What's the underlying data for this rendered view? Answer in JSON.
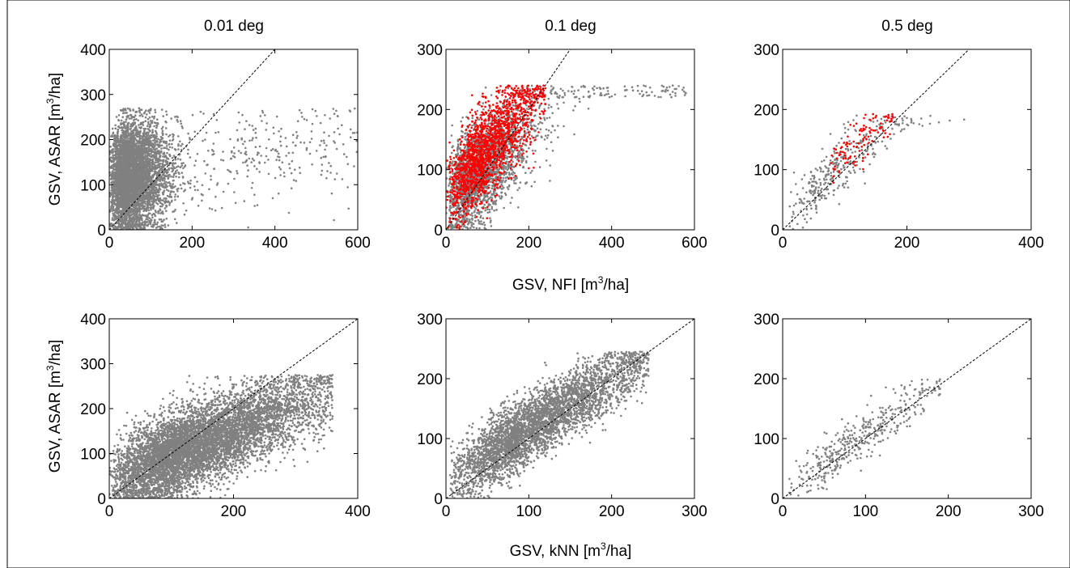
{
  "colors": {
    "grey_points": "#808080",
    "red_points": "#ff0000",
    "frame": "#000000"
  },
  "figure": {
    "titles": [
      "0.01 deg",
      "0.1 deg",
      "0.5 deg"
    ],
    "ylabel": {
      "pre": "GSV, ASAR [m",
      "sup": "3",
      "post": "/ha]"
    },
    "xlabel_top": {
      "pre": "GSV, NFI [m",
      "sup": "3",
      "post": "/ha]"
    },
    "xlabel_bottom": {
      "pre": "GSV, kNN [m",
      "sup": "3",
      "post": "/ha]"
    }
  },
  "chart_data": [
    {
      "type": "scatter",
      "id": "nfi-0.01",
      "title": "0.01 deg",
      "xlabel": "",
      "ylabel": "GSV, ASAR [m3/ha]",
      "xlim": [
        0,
        600
      ],
      "ylim": [
        0,
        400
      ],
      "xticks": [
        0,
        200,
        400,
        600
      ],
      "yticks": [
        0,
        100,
        200,
        300,
        400
      ],
      "reference_line": "1:1",
      "series": [
        {
          "color": "#808080",
          "n": 5000,
          "x_range": [
            0,
            600
          ],
          "x_peak": 60,
          "y_at_x0": 110,
          "y_slope": 0.15,
          "y_spread": 60,
          "y_max": 270
        }
      ]
    },
    {
      "type": "scatter",
      "id": "nfi-0.1",
      "title": "0.1 deg",
      "xlabel": "GSV, NFI [m3/ha]",
      "ylabel": "",
      "xlim": [
        0,
        600
      ],
      "ylim": [
        0,
        300
      ],
      "xticks": [
        0,
        200,
        400,
        600
      ],
      "yticks": [
        0,
        100,
        200,
        300
      ],
      "reference_line": "1:1",
      "series": [
        {
          "color": "#808080",
          "n": 2500,
          "x_range": [
            0,
            580
          ],
          "x_peak": 90,
          "y_at_x0": 50,
          "y_slope": 0.6,
          "y_spread": 40,
          "y_max": 240
        },
        {
          "color": "#ff0000",
          "n": 1600,
          "x_range": [
            0,
            240
          ],
          "x_peak": 110,
          "y_at_x0": 60,
          "y_slope": 0.75,
          "y_spread": 38,
          "y_max": 240
        }
      ]
    },
    {
      "type": "scatter",
      "id": "nfi-0.5",
      "title": "0.5 deg",
      "xlabel": "",
      "ylabel": "",
      "xlim": [
        0,
        400
      ],
      "ylim": [
        0,
        300
      ],
      "xticks": [
        0,
        200,
        400
      ],
      "yticks": [
        0,
        100,
        200,
        300
      ],
      "reference_line": "1:1",
      "series": [
        {
          "color": "#808080",
          "n": 340,
          "x_range": [
            10,
            310
          ],
          "x_peak": 90,
          "y_at_x0": 20,
          "y_slope": 0.9,
          "y_spread": 22,
          "y_max": 190
        },
        {
          "color": "#ff0000",
          "n": 110,
          "x_range": [
            70,
            180
          ],
          "x_peak": 130,
          "y_at_x0": 40,
          "y_slope": 0.85,
          "y_spread": 20,
          "y_max": 195
        }
      ]
    },
    {
      "type": "scatter",
      "id": "knn-0.01",
      "xlabel": "",
      "ylabel": "GSV, ASAR [m3/ha]",
      "xlim": [
        0,
        400
      ],
      "ylim": [
        0,
        400
      ],
      "xticks": [
        0,
        200,
        400
      ],
      "yticks": [
        0,
        100,
        200,
        300,
        400
      ],
      "reference_line": "1:1",
      "series": [
        {
          "color": "#808080",
          "n": 7000,
          "x_range": [
            0,
            360
          ],
          "x_peak": 150,
          "y_at_x0": 40,
          "y_slope": 0.55,
          "y_spread": 45,
          "y_max": 275
        }
      ]
    },
    {
      "type": "scatter",
      "id": "knn-0.1",
      "xlabel": "GSV, kNN [m3/ha]",
      "ylabel": "",
      "xlim": [
        0,
        300
      ],
      "ylim": [
        0,
        300
      ],
      "xticks": [
        0,
        100,
        200,
        300
      ],
      "yticks": [
        0,
        100,
        200,
        300
      ],
      "reference_line": "1:1",
      "series": [
        {
          "color": "#808080",
          "n": 4000,
          "x_range": [
            5,
            245
          ],
          "x_peak": 120,
          "y_at_x0": 30,
          "y_slope": 0.85,
          "y_spread": 28,
          "y_max": 245
        }
      ]
    },
    {
      "type": "scatter",
      "id": "knn-0.5",
      "xlabel": "",
      "ylabel": "",
      "xlim": [
        0,
        300
      ],
      "ylim": [
        0,
        300
      ],
      "xticks": [
        0,
        100,
        200,
        300
      ],
      "yticks": [
        0,
        100,
        200,
        300
      ],
      "reference_line": "1:1",
      "series": [
        {
          "color": "#808080",
          "n": 420,
          "x_range": [
            5,
            190
          ],
          "x_peak": 110,
          "y_at_x0": 10,
          "y_slope": 0.95,
          "y_spread": 20,
          "y_max": 200
        }
      ]
    }
  ]
}
